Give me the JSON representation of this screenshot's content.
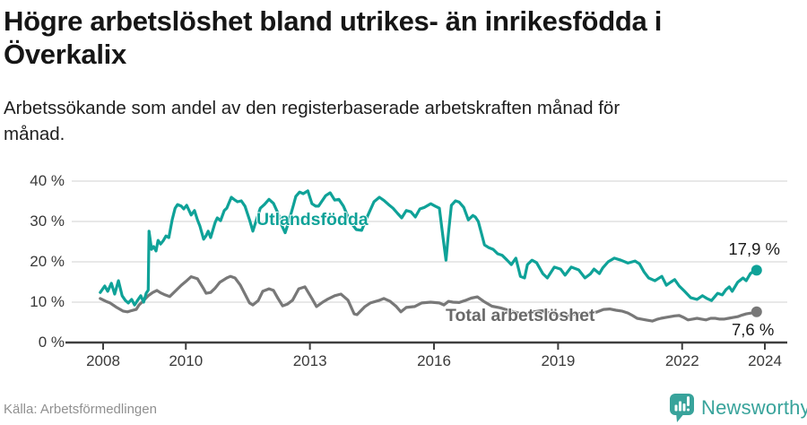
{
  "header": {
    "title_lines": [
      "Högre arbetslöshet bland utrikes- än inrikesfödda i",
      "Överkalix"
    ],
    "subtitle_lines": [
      "Arbetssökande som andel av den registerbaserade arbetskraften månad för",
      "månad."
    ]
  },
  "colors": {
    "accent_teal": "#0FA298",
    "line_gray": "#787878",
    "series_label_gray": "#696969",
    "grid": "#dadada",
    "axis": "#3f3f3f"
  },
  "chart_data": {
    "type": "line",
    "unit": "%",
    "grid": true,
    "legend_position": "inline-labels",
    "x_axis": {
      "range": [
        2007.85,
        2024.55
      ],
      "ticks": [
        {
          "label": "2008",
          "year": 2008
        },
        {
          "label": "2010",
          "year": 2010
        },
        {
          "label": "2013",
          "year": 2013
        },
        {
          "label": "2016",
          "year": 2016
        },
        {
          "label": "2019",
          "year": 2019
        },
        {
          "label": "2022",
          "year": 2022
        },
        {
          "label": "2024",
          "year": 2024
        }
      ]
    },
    "y_axis": {
      "range": [
        0,
        43.5
      ],
      "ticks": [
        {
          "label": "40 %",
          "value": 40
        },
        {
          "label": "30 %",
          "value": 30
        },
        {
          "label": "20 %",
          "value": 20
        },
        {
          "label": "10 %",
          "value": 10
        },
        {
          "label": "0 %",
          "value": 0
        }
      ]
    },
    "series": [
      {
        "name": "Utlandsfödda",
        "color": "#0FA298",
        "end_label": "17,9 %",
        "end_value": 17.9,
        "points": [
          [
            2007.93,
            12.4
          ],
          [
            2008.04,
            14.0
          ],
          [
            2008.11,
            12.7
          ],
          [
            2008.2,
            14.7
          ],
          [
            2008.28,
            12.0
          ],
          [
            2008.37,
            15.3
          ],
          [
            2008.46,
            11.6
          ],
          [
            2008.54,
            10.4
          ],
          [
            2008.61,
            9.8
          ],
          [
            2008.69,
            10.7
          ],
          [
            2008.76,
            9.3
          ],
          [
            2008.83,
            10.4
          ],
          [
            2008.91,
            11.6
          ],
          [
            2008.98,
            10.0
          ],
          [
            2009.04,
            12.2
          ],
          [
            2009.09,
            13.0
          ],
          [
            2009.11,
            27.6
          ],
          [
            2009.17,
            23.1
          ],
          [
            2009.22,
            23.8
          ],
          [
            2009.28,
            22.7
          ],
          [
            2009.33,
            25.3
          ],
          [
            2009.39,
            24.4
          ],
          [
            2009.46,
            25.3
          ],
          [
            2009.52,
            26.4
          ],
          [
            2009.59,
            26.0
          ],
          [
            2009.67,
            30.4
          ],
          [
            2009.74,
            33.3
          ],
          [
            2009.8,
            34.2
          ],
          [
            2009.89,
            33.8
          ],
          [
            2009.95,
            33.1
          ],
          [
            2010.02,
            34.0
          ],
          [
            2010.13,
            31.6
          ],
          [
            2010.21,
            32.7
          ],
          [
            2010.28,
            30.4
          ],
          [
            2010.34,
            28.9
          ],
          [
            2010.43,
            25.6
          ],
          [
            2010.49,
            26.5
          ],
          [
            2010.54,
            27.6
          ],
          [
            2010.6,
            26.0
          ],
          [
            2010.71,
            29.8
          ],
          [
            2010.76,
            30.9
          ],
          [
            2010.84,
            30.2
          ],
          [
            2010.93,
            32.7
          ],
          [
            2010.99,
            33.3
          ],
          [
            2011.1,
            36.0
          ],
          [
            2011.19,
            35.3
          ],
          [
            2011.25,
            34.9
          ],
          [
            2011.34,
            35.1
          ],
          [
            2011.43,
            33.8
          ],
          [
            2011.54,
            30.4
          ],
          [
            2011.62,
            27.6
          ],
          [
            2011.71,
            30.5
          ],
          [
            2011.8,
            33.3
          ],
          [
            2011.9,
            34.2
          ],
          [
            2012.01,
            35.5
          ],
          [
            2012.12,
            34.5
          ],
          [
            2012.23,
            32.0
          ],
          [
            2012.32,
            29.0
          ],
          [
            2012.4,
            27.2
          ],
          [
            2012.49,
            30.0
          ],
          [
            2012.6,
            34.0
          ],
          [
            2012.66,
            36.2
          ],
          [
            2012.75,
            37.3
          ],
          [
            2012.84,
            36.9
          ],
          [
            2012.95,
            37.6
          ],
          [
            2013.05,
            34.4
          ],
          [
            2013.14,
            33.8
          ],
          [
            2013.21,
            33.8
          ],
          [
            2013.38,
            36.4
          ],
          [
            2013.49,
            37.1
          ],
          [
            2013.6,
            35.3
          ],
          [
            2013.7,
            35.5
          ],
          [
            2013.81,
            33.8
          ],
          [
            2013.97,
            30.0
          ],
          [
            2014.12,
            28.0
          ],
          [
            2014.25,
            27.8
          ],
          [
            2014.4,
            31.5
          ],
          [
            2014.55,
            34.9
          ],
          [
            2014.68,
            36.0
          ],
          [
            2014.79,
            35.2
          ],
          [
            2014.9,
            34.2
          ],
          [
            2015.01,
            33.3
          ],
          [
            2015.12,
            32.0
          ],
          [
            2015.22,
            30.9
          ],
          [
            2015.33,
            32.7
          ],
          [
            2015.44,
            32.4
          ],
          [
            2015.55,
            31.1
          ],
          [
            2015.66,
            33.1
          ],
          [
            2015.77,
            33.5
          ],
          [
            2015.92,
            34.4
          ],
          [
            2016.03,
            33.8
          ],
          [
            2016.13,
            33.3
          ],
          [
            2016.22,
            26.0
          ],
          [
            2016.29,
            20.4
          ],
          [
            2016.35,
            27.0
          ],
          [
            2016.42,
            34.0
          ],
          [
            2016.52,
            35.1
          ],
          [
            2016.61,
            34.8
          ],
          [
            2016.72,
            33.5
          ],
          [
            2016.83,
            30.4
          ],
          [
            2016.94,
            31.5
          ],
          [
            2017.0,
            31.1
          ],
          [
            2017.07,
            30.0
          ],
          [
            2017.15,
            27.0
          ],
          [
            2017.22,
            24.2
          ],
          [
            2017.33,
            23.5
          ],
          [
            2017.43,
            23.1
          ],
          [
            2017.54,
            22.0
          ],
          [
            2017.65,
            21.6
          ],
          [
            2017.76,
            20.5
          ],
          [
            2017.87,
            19.3
          ],
          [
            2017.98,
            20.9
          ],
          [
            2018.09,
            16.4
          ],
          [
            2018.19,
            16.0
          ],
          [
            2018.26,
            19.3
          ],
          [
            2018.37,
            20.4
          ],
          [
            2018.48,
            19.8
          ],
          [
            2018.63,
            17.1
          ],
          [
            2018.74,
            16.0
          ],
          [
            2018.91,
            18.7
          ],
          [
            2019.06,
            18.2
          ],
          [
            2019.17,
            16.7
          ],
          [
            2019.32,
            18.7
          ],
          [
            2019.5,
            18.0
          ],
          [
            2019.65,
            16.0
          ],
          [
            2019.78,
            17.0
          ],
          [
            2019.87,
            18.2
          ],
          [
            2020.0,
            17.1
          ],
          [
            2020.08,
            18.5
          ],
          [
            2020.21,
            20.0
          ],
          [
            2020.36,
            20.9
          ],
          [
            2020.52,
            20.4
          ],
          [
            2020.69,
            19.7
          ],
          [
            2020.86,
            20.2
          ],
          [
            2020.97,
            19.5
          ],
          [
            2021.08,
            17.5
          ],
          [
            2021.19,
            16.0
          ],
          [
            2021.34,
            15.3
          ],
          [
            2021.51,
            16.4
          ],
          [
            2021.62,
            14.2
          ],
          [
            2021.73,
            15.0
          ],
          [
            2021.82,
            15.6
          ],
          [
            2021.93,
            14.0
          ],
          [
            2022.06,
            12.7
          ],
          [
            2022.21,
            11.1
          ],
          [
            2022.36,
            10.7
          ],
          [
            2022.49,
            11.6
          ],
          [
            2022.6,
            10.9
          ],
          [
            2022.71,
            10.4
          ],
          [
            2022.86,
            12.2
          ],
          [
            2022.97,
            11.8
          ],
          [
            2023.06,
            13.1
          ],
          [
            2023.14,
            13.8
          ],
          [
            2023.21,
            12.7
          ],
          [
            2023.34,
            14.9
          ],
          [
            2023.47,
            16.0
          ],
          [
            2023.55,
            15.3
          ],
          [
            2023.65,
            17.1
          ],
          [
            2023.72,
            17.6
          ],
          [
            2023.8,
            17.9
          ]
        ]
      },
      {
        "name": "Total arbetslöshet",
        "color": "#787878",
        "end_label": "7,6 %",
        "end_value": 7.6,
        "points": [
          [
            2007.93,
            10.9
          ],
          [
            2008.07,
            10.2
          ],
          [
            2008.17,
            9.8
          ],
          [
            2008.33,
            8.7
          ],
          [
            2008.48,
            7.8
          ],
          [
            2008.59,
            7.6
          ],
          [
            2008.69,
            7.9
          ],
          [
            2008.8,
            8.2
          ],
          [
            2008.87,
            9.3
          ],
          [
            2008.98,
            10.4
          ],
          [
            2009.09,
            11.6
          ],
          [
            2009.2,
            12.4
          ],
          [
            2009.3,
            12.9
          ],
          [
            2009.39,
            12.3
          ],
          [
            2009.5,
            11.8
          ],
          [
            2009.61,
            11.4
          ],
          [
            2009.74,
            12.7
          ],
          [
            2009.89,
            14.2
          ],
          [
            2010.02,
            15.3
          ],
          [
            2010.13,
            16.3
          ],
          [
            2010.28,
            15.8
          ],
          [
            2010.43,
            13.3
          ],
          [
            2010.49,
            12.2
          ],
          [
            2010.6,
            12.4
          ],
          [
            2010.71,
            13.5
          ],
          [
            2010.82,
            14.9
          ],
          [
            2010.99,
            16.0
          ],
          [
            2011.08,
            16.4
          ],
          [
            2011.19,
            16.0
          ],
          [
            2011.32,
            14.2
          ],
          [
            2011.43,
            12.0
          ],
          [
            2011.54,
            9.8
          ],
          [
            2011.62,
            9.3
          ],
          [
            2011.75,
            10.4
          ],
          [
            2011.86,
            12.7
          ],
          [
            2012.01,
            13.3
          ],
          [
            2012.12,
            12.9
          ],
          [
            2012.23,
            10.9
          ],
          [
            2012.34,
            9.1
          ],
          [
            2012.45,
            9.5
          ],
          [
            2012.58,
            10.5
          ],
          [
            2012.73,
            13.3
          ],
          [
            2012.88,
            13.8
          ],
          [
            2013.05,
            10.9
          ],
          [
            2013.16,
            8.9
          ],
          [
            2013.31,
            10.0
          ],
          [
            2013.44,
            10.8
          ],
          [
            2013.6,
            11.6
          ],
          [
            2013.75,
            12.0
          ],
          [
            2013.92,
            10.5
          ],
          [
            2014.07,
            7.1
          ],
          [
            2014.14,
            6.9
          ],
          [
            2014.33,
            8.9
          ],
          [
            2014.46,
            9.8
          ],
          [
            2014.66,
            10.4
          ],
          [
            2014.79,
            10.9
          ],
          [
            2014.94,
            10.2
          ],
          [
            2015.09,
            8.9
          ],
          [
            2015.2,
            7.6
          ],
          [
            2015.33,
            8.7
          ],
          [
            2015.53,
            8.9
          ],
          [
            2015.7,
            9.8
          ],
          [
            2015.92,
            10.0
          ],
          [
            2016.13,
            9.8
          ],
          [
            2016.24,
            9.3
          ],
          [
            2016.35,
            10.2
          ],
          [
            2016.46,
            10.0
          ],
          [
            2016.61,
            9.9
          ],
          [
            2016.75,
            10.4
          ],
          [
            2016.9,
            11.0
          ],
          [
            2017.05,
            11.3
          ],
          [
            2017.2,
            10.2
          ],
          [
            2017.4,
            9.0
          ],
          [
            2017.6,
            8.6
          ],
          [
            2017.8,
            8.0
          ],
          [
            2018.0,
            7.4
          ],
          [
            2018.2,
            7.0
          ],
          [
            2018.4,
            7.6
          ],
          [
            2018.6,
            7.9
          ],
          [
            2018.8,
            7.3
          ],
          [
            2019.0,
            6.8
          ],
          [
            2019.2,
            6.5
          ],
          [
            2019.4,
            7.0
          ],
          [
            2019.6,
            7.3
          ],
          [
            2019.8,
            7.2
          ],
          [
            2019.95,
            7.6
          ],
          [
            2020.1,
            8.2
          ],
          [
            2020.25,
            8.3
          ],
          [
            2020.4,
            8.0
          ],
          [
            2020.54,
            7.8
          ],
          [
            2020.69,
            7.3
          ],
          [
            2020.8,
            6.7
          ],
          [
            2020.91,
            6.0
          ],
          [
            2021.02,
            5.8
          ],
          [
            2021.12,
            5.6
          ],
          [
            2021.28,
            5.3
          ],
          [
            2021.41,
            5.8
          ],
          [
            2021.49,
            6.0
          ],
          [
            2021.6,
            6.2
          ],
          [
            2021.71,
            6.4
          ],
          [
            2021.82,
            6.6
          ],
          [
            2021.93,
            6.7
          ],
          [
            2022.04,
            6.2
          ],
          [
            2022.14,
            5.6
          ],
          [
            2022.25,
            5.8
          ],
          [
            2022.36,
            6.0
          ],
          [
            2022.47,
            5.8
          ],
          [
            2022.58,
            5.6
          ],
          [
            2022.69,
            6.0
          ],
          [
            2022.8,
            6.0
          ],
          [
            2022.91,
            5.8
          ],
          [
            2023.01,
            5.8
          ],
          [
            2023.12,
            6.0
          ],
          [
            2023.23,
            6.2
          ],
          [
            2023.34,
            6.4
          ],
          [
            2023.45,
            6.8
          ],
          [
            2023.55,
            7.1
          ],
          [
            2023.68,
            7.3
          ],
          [
            2023.8,
            7.6
          ]
        ]
      }
    ]
  },
  "footer": {
    "source": "Källa: Arbetsförmedlingen",
    "brand": "Newsworthy"
  }
}
